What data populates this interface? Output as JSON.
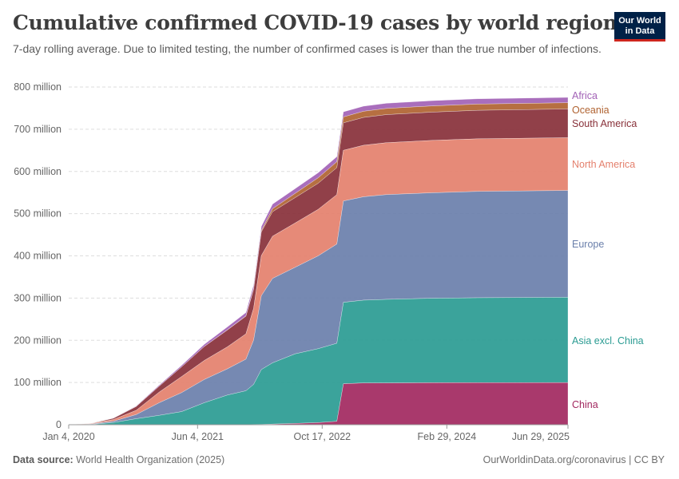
{
  "header": {
    "title": "Cumulative confirmed COVID-19 cases by world region",
    "subtitle": "7-day rolling average. Due to limited testing, the number of confirmed cases is lower than the true number of infections.",
    "logo_line1": "Our World",
    "logo_line2": "in Data"
  },
  "footer": {
    "source_label": "Data source:",
    "source_value": "World Health Organization (2025)",
    "right": "OurWorldinData.org/coronavirus | CC BY"
  },
  "chart_data": {
    "type": "area",
    "stacked": true,
    "x_label": "",
    "y_label": "",
    "x_domain": [
      "2020-01-04",
      "2025-06-29"
    ],
    "x_ticks": [
      "Jan 4, 2020",
      "Jun 4, 2021",
      "Oct 17, 2022",
      "Feb 29, 2024",
      "Jun 29, 2025"
    ],
    "y_range": [
      0,
      800000000
    ],
    "y_ticks": [
      "0",
      "100 million",
      "200 million",
      "300 million",
      "400 million",
      "500 million",
      "600 million",
      "700 million",
      "800 million"
    ],
    "grid": true,
    "legend_placement": "right, inline labels",
    "x": [
      "2020-01-04",
      "2020-04-01",
      "2020-07-01",
      "2020-10-01",
      "2021-01-01",
      "2021-04-01",
      "2021-07-01",
      "2021-10-01",
      "2021-12-15",
      "2022-01-15",
      "2022-02-15",
      "2022-04-01",
      "2022-07-01",
      "2022-10-01",
      "2022-12-15",
      "2023-01-10",
      "2023-04-01",
      "2023-07-01",
      "2024-01-01",
      "2024-07-01",
      "2025-06-29"
    ],
    "series": [
      {
        "name": "China",
        "color": "#a2285f",
        "values": [
          0,
          0.1,
          0.1,
          0.1,
          0.1,
          0.1,
          0.1,
          0.2,
          0.3,
          0.5,
          0.7,
          1.5,
          3,
          5,
          8,
          97,
          99,
          99,
          99.5,
          99.7,
          99.9
        ]
      },
      {
        "name": "Asia excl. China",
        "color": "#2a9b92",
        "values": [
          0,
          0.5,
          5,
          14,
          22,
          31,
          52,
          70,
          80,
          95,
          130,
          145,
          165,
          175,
          185,
          193,
          196,
          198,
          200,
          201,
          202
        ]
      },
      {
        "name": "Europe",
        "color": "#6a7fab",
        "values": [
          0,
          1,
          3,
          10,
          30,
          45,
          55,
          62,
          75,
          105,
          175,
          200,
          205,
          220,
          235,
          240,
          245,
          248,
          250,
          252,
          253
        ]
      },
      {
        "name": "North America",
        "color": "#e4806d",
        "values": [
          0,
          1,
          4,
          10,
          25,
          38,
          45,
          52,
          60,
          75,
          95,
          100,
          105,
          110,
          117,
          120,
          122,
          123,
          124,
          124.5,
          125
        ]
      },
      {
        "name": "South America",
        "color": "#883039",
        "values": [
          0,
          0.3,
          3,
          9,
          14,
          23,
          33,
          40,
          42,
          45,
          56,
          58,
          60,
          62,
          64,
          65,
          66,
          66.5,
          67,
          67.5,
          68
        ]
      },
      {
        "name": "Oceania",
        "color": "#b06331",
        "values": [
          0,
          0,
          0,
          0,
          0.1,
          0.1,
          0.1,
          0.2,
          0.4,
          2,
          3,
          7,
          10,
          13,
          14,
          14,
          14.5,
          14.6,
          14.7,
          14.8,
          14.9
        ]
      },
      {
        "name": "Africa",
        "color": "#a262b6",
        "values": [
          0,
          0.1,
          0.6,
          1.3,
          2.5,
          3.6,
          5,
          7,
          8,
          9,
          10,
          11,
          11.5,
          11.8,
          12,
          12.1,
          12.2,
          12.3,
          12.4,
          12.5,
          12.6
        ]
      }
    ],
    "value_unit": "million"
  }
}
